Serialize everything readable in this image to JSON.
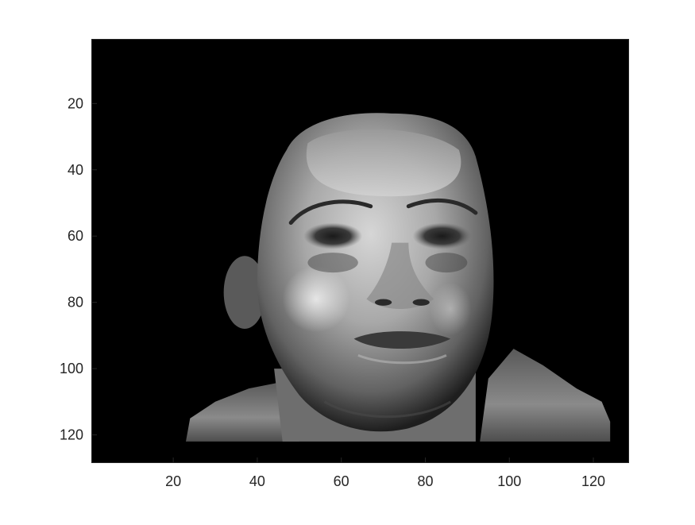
{
  "figure": {
    "background": "#ffffff",
    "axes_color": "#262626"
  },
  "chart_data": {
    "type": "heatmap",
    "colormap": "gray",
    "title": "",
    "xlabel": "",
    "ylabel": "",
    "xlim": [
      0.5,
      128.5
    ],
    "ylim": [
      0.5,
      128.5
    ],
    "y_reversed": true,
    "xticks": [
      20,
      40,
      60,
      80,
      100,
      120
    ],
    "yticks": [
      20,
      40,
      60,
      80,
      100,
      120
    ],
    "xtick_labels": [
      "20",
      "40",
      "60",
      "80",
      "100",
      "120"
    ],
    "ytick_labels": [
      "20",
      "40",
      "60",
      "80",
      "100",
      "120"
    ],
    "image_content": "grayscale face photograph on black background",
    "image_bounds": {
      "x": [
        22,
        124
      ],
      "y": [
        23,
        122
      ]
    }
  }
}
